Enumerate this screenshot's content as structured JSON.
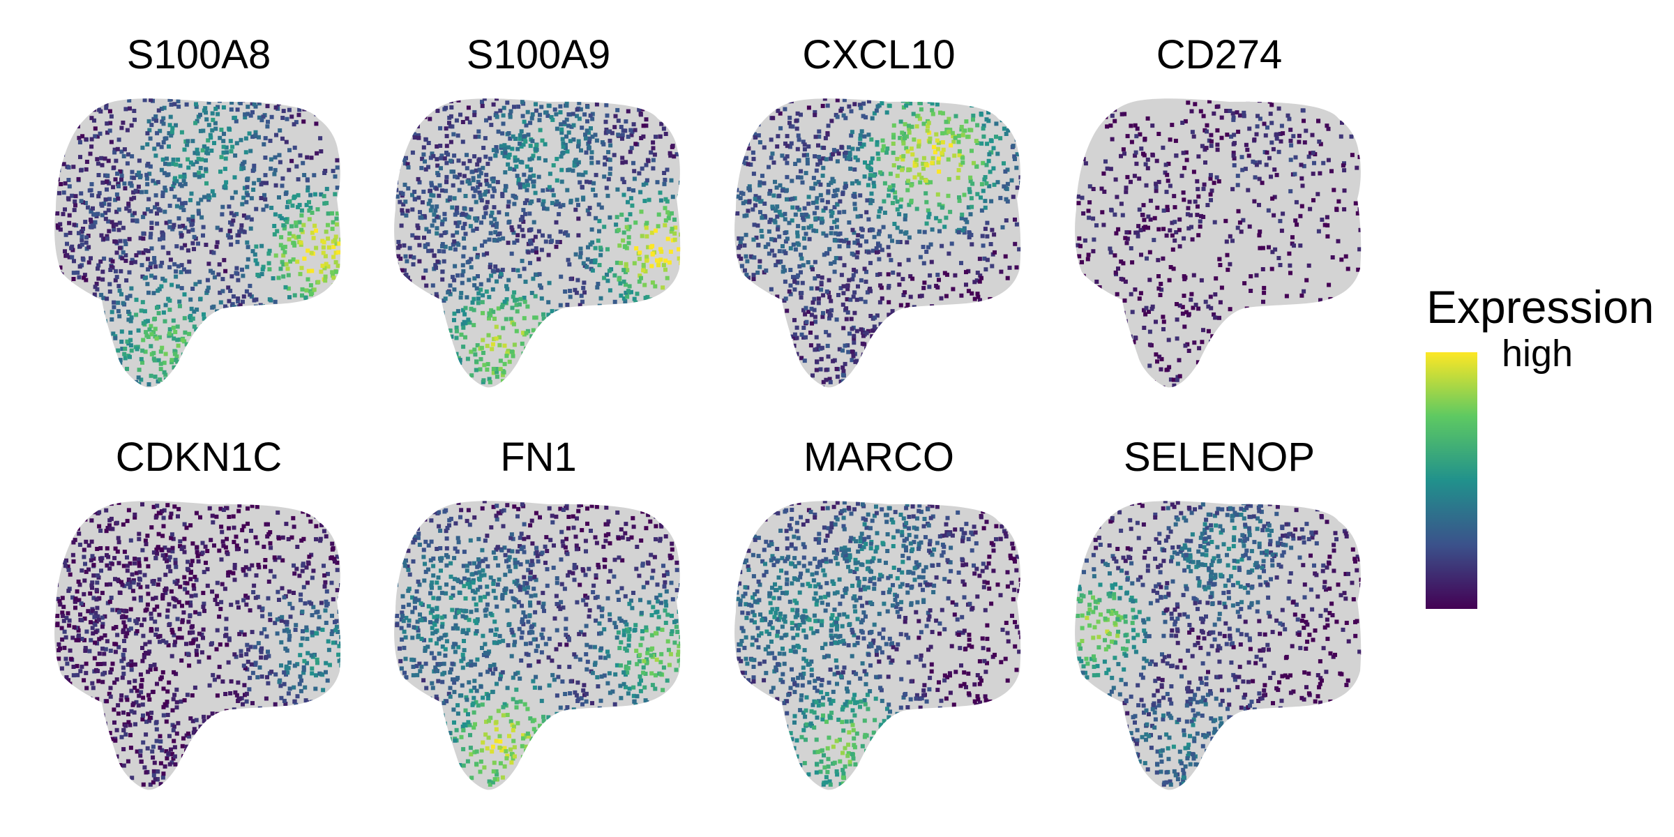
{
  "chart_data": {
    "type": "scatter",
    "description_kind": "umap-feature-plot-grid",
    "layout": {
      "rows": 2,
      "cols": 4
    },
    "panels": [
      {
        "title": "S100A8",
        "hotspots": [
          {
            "region": "right-lobe",
            "level": 1.0
          },
          {
            "region": "bottom-tail",
            "level": 0.7
          },
          {
            "region": "upper-center",
            "level": 0.5
          },
          {
            "region": "left-mass",
            "level": 0.2
          }
        ]
      },
      {
        "title": "S100A9",
        "hotspots": [
          {
            "region": "right-lobe",
            "level": 1.0
          },
          {
            "region": "bottom-tail",
            "level": 0.85
          },
          {
            "region": "upper-center",
            "level": 0.45
          },
          {
            "region": "left-mass",
            "level": 0.3
          }
        ]
      },
      {
        "title": "CXCL10",
        "hotspots": [
          {
            "region": "upper-right",
            "level": 0.95
          },
          {
            "region": "left-mass",
            "level": 0.35
          },
          {
            "region": "bottom-tail",
            "level": 0.2
          }
        ]
      },
      {
        "title": "CD274",
        "hotspots": [
          {
            "region": "upper-right",
            "level": 0.15
          },
          {
            "region": "left-mass",
            "level": 0.08
          },
          {
            "region": "bottom-tail",
            "level": 0.05
          }
        ]
      },
      {
        "title": "CDKN1C",
        "hotspots": [
          {
            "region": "left-mass",
            "level": 0.1
          },
          {
            "region": "bottom-tail",
            "level": 0.1
          },
          {
            "region": "right-lobe",
            "level": 0.45
          }
        ]
      },
      {
        "title": "FN1",
        "hotspots": [
          {
            "region": "bottom-tail",
            "level": 0.9
          },
          {
            "region": "right-lobe",
            "level": 0.75
          },
          {
            "region": "left-mass",
            "level": 0.45
          }
        ]
      },
      {
        "title": "MARCO",
        "hotspots": [
          {
            "region": "bottom-tail",
            "level": 0.75
          },
          {
            "region": "left-mass",
            "level": 0.45
          },
          {
            "region": "upper-center",
            "level": 0.4
          }
        ]
      },
      {
        "title": "SELENOP",
        "hotspots": [
          {
            "region": "left-edge",
            "level": 0.85
          },
          {
            "region": "bottom-tail",
            "level": 0.4
          },
          {
            "region": "upper-center",
            "level": 0.4
          }
        ]
      }
    ],
    "colorbar": {
      "title": "Expression",
      "label_high": "high",
      "colors": [
        "#fde725",
        "#5ec962",
        "#21918c",
        "#3b528b",
        "#440154"
      ],
      "background_color": "#d3d3d3"
    }
  }
}
